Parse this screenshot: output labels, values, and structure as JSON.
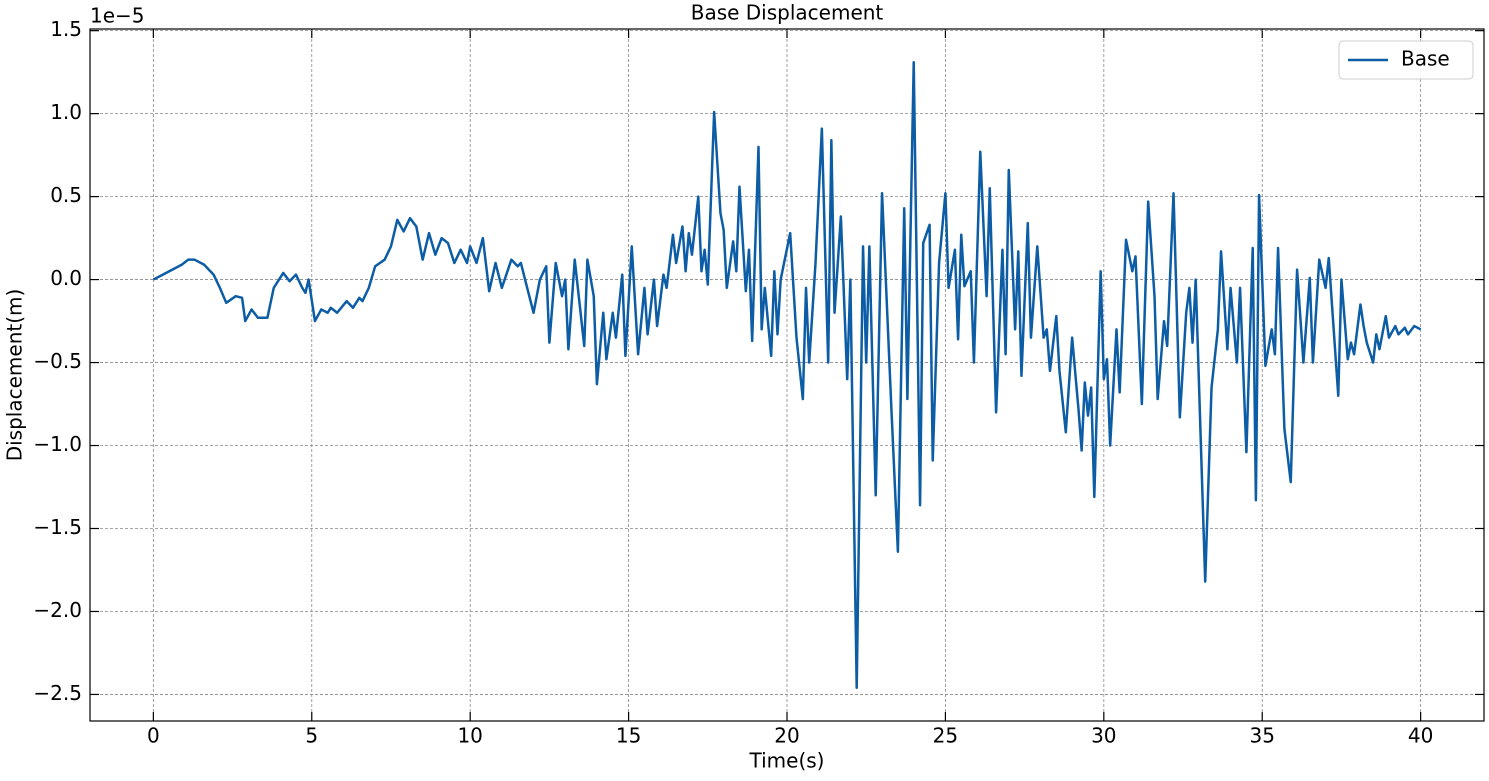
{
  "chart_data": {
    "type": "line",
    "title": "Base Displacement",
    "xlabel": "Time(s)",
    "ylabel": "Displacement(m)",
    "y_offset_label": "1e−5",
    "x": [
      0,
      0.3,
      0.6,
      0.9,
      1.1,
      1.3,
      1.6,
      1.9,
      2.1,
      2.3,
      2.6,
      2.8,
      2.9,
      3.1,
      3.3,
      3.6,
      3.8,
      4.1,
      4.3,
      4.5,
      4.7,
      4.8,
      4.9,
      5.1,
      5.3,
      5.5,
      5.6,
      5.8,
      6.1,
      6.3,
      6.5,
      6.6,
      6.8,
      7.0,
      7.3,
      7.5,
      7.7,
      7.9,
      8.1,
      8.3,
      8.5,
      8.7,
      8.9,
      9.1,
      9.3,
      9.5,
      9.7,
      9.9,
      10.0,
      10.2,
      10.4,
      10.6,
      10.8,
      11.0,
      11.3,
      11.5,
      11.6,
      11.8,
      12.0,
      12.2,
      12.4,
      12.5,
      12.7,
      12.9,
      13.0,
      13.1,
      13.3,
      13.6,
      13.7,
      13.9,
      14.0,
      14.2,
      14.3,
      14.5,
      14.6,
      14.8,
      14.9,
      15.1,
      15.3,
      15.5,
      15.6,
      15.8,
      15.9,
      16.1,
      16.2,
      16.4,
      16.5,
      16.7,
      16.8,
      16.9,
      17.0,
      17.2,
      17.3,
      17.4,
      17.5,
      17.7,
      17.9,
      18.0,
      18.1,
      18.3,
      18.4,
      18.5,
      18.7,
      18.8,
      18.9,
      19.1,
      19.2,
      19.3,
      19.5,
      19.6,
      19.7,
      19.8,
      20.1,
      20.3,
      20.5,
      20.6,
      20.7,
      20.9,
      21.1,
      21.3,
      21.4,
      21.5,
      21.7,
      21.9,
      22.0,
      22.2,
      22.4,
      22.5,
      22.6,
      22.8,
      23.0,
      23.3,
      23.5,
      23.7,
      23.8,
      24.0,
      24.2,
      24.3,
      24.5,
      24.6,
      24.8,
      25.0,
      25.1,
      25.3,
      25.4,
      25.5,
      25.6,
      25.8,
      25.9,
      26.1,
      26.3,
      26.4,
      26.6,
      26.8,
      26.9,
      27.0,
      27.2,
      27.3,
      27.4,
      27.6,
      27.7,
      27.9,
      28.1,
      28.2,
      28.3,
      28.5,
      28.6,
      28.8,
      29.0,
      29.2,
      29.3,
      29.4,
      29.5,
      29.6,
      29.7,
      29.9,
      30.0,
      30.1,
      30.2,
      30.4,
      30.5,
      30.7,
      30.9,
      31.0,
      31.2,
      31.4,
      31.6,
      31.7,
      31.9,
      32.0,
      32.2,
      32.4,
      32.6,
      32.7,
      32.8,
      32.9,
      33.2,
      33.4,
      33.6,
      33.7,
      33.9,
      34.0,
      34.2,
      34.3,
      34.5,
      34.7,
      34.8,
      34.9,
      35.1,
      35.3,
      35.4,
      35.5,
      35.7,
      35.9,
      36.1,
      36.3,
      36.5,
      36.6,
      36.8,
      37.0,
      37.1,
      37.4,
      37.5,
      37.7,
      37.8,
      37.9,
      38.1,
      38.2,
      38.3,
      38.5,
      38.6,
      38.7,
      38.9,
      39.0,
      39.2,
      39.3,
      39.5,
      39.6,
      39.8,
      40.0
    ],
    "series": [
      {
        "name": "Base",
        "color": "#0c5da5",
        "values": [
          0,
          0.03,
          0.06,
          0.09,
          0.12,
          0.12,
          0.09,
          0.03,
          -0.05,
          -0.14,
          -0.1,
          -0.11,
          -0.25,
          -0.18,
          -0.23,
          -0.23,
          -0.05,
          0.04,
          -0.01,
          0.03,
          -0.05,
          -0.08,
          0,
          -0.25,
          -0.18,
          -0.2,
          -0.17,
          -0.2,
          -0.13,
          -0.17,
          -0.11,
          -0.13,
          -0.05,
          0.08,
          0.12,
          0.2,
          0.36,
          0.29,
          0.37,
          0.32,
          0.12,
          0.28,
          0.15,
          0.25,
          0.22,
          0.1,
          0.18,
          0.1,
          0.2,
          0.1,
          0.25,
          -0.07,
          0.1,
          -0.05,
          0.12,
          0.08,
          0.1,
          -0.05,
          -0.2,
          0,
          0.08,
          -0.38,
          0.1,
          -0.1,
          0,
          -0.42,
          0.12,
          -0.4,
          0.12,
          -0.1,
          -0.63,
          -0.2,
          -0.48,
          -0.2,
          -0.35,
          0.03,
          -0.46,
          0.2,
          -0.45,
          -0.05,
          -0.33,
          0,
          -0.28,
          0.03,
          -0.05,
          0.27,
          0.1,
          0.32,
          0.05,
          0.28,
          0.15,
          0.5,
          0.05,
          0.18,
          -0.03,
          1.01,
          0.4,
          0.3,
          -0.05,
          0.23,
          0.05,
          0.56,
          -0.07,
          0.18,
          -0.37,
          0.8,
          -0.3,
          -0.05,
          -0.46,
          0.05,
          -0.33,
          0,
          0.28,
          -0.35,
          -0.72,
          -0.05,
          -0.5,
          0.1,
          0.91,
          -0.5,
          0.84,
          -0.2,
          0.38,
          -0.6,
          0,
          -2.46,
          0.2,
          -0.5,
          0.2,
          -1.3,
          0.52,
          -0.8,
          -1.64,
          0.43,
          -0.72,
          1.31,
          -1.36,
          0.22,
          0.33,
          -1.09,
          0.1,
          0.52,
          -0.05,
          0.18,
          -0.36,
          0.27,
          -0.04,
          0.05,
          -0.5,
          0.77,
          -0.1,
          0.55,
          -0.8,
          0.18,
          -0.45,
          0.66,
          -0.3,
          0.17,
          -0.58,
          0.34,
          -0.35,
          0.2,
          -0.35,
          -0.3,
          -0.55,
          -0.22,
          -0.55,
          -0.92,
          -0.35,
          -0.78,
          -1.03,
          -0.62,
          -0.82,
          -0.65,
          -1.31,
          0.05,
          -0.6,
          -0.48,
          -1,
          -0.3,
          -0.68,
          0.24,
          0.05,
          0.14,
          -0.75,
          0.47,
          -0.1,
          -0.72,
          -0.25,
          -0.4,
          0.52,
          -0.83,
          -0.2,
          -0.05,
          -0.38,
          0,
          -1.82,
          -0.65,
          -0.3,
          0.17,
          -0.42,
          -0.05,
          -0.5,
          -0.05,
          -1.04,
          0.19,
          -1.33,
          0.51,
          -0.52,
          -0.3,
          -0.45,
          0.19,
          -0.9,
          -1.22,
          0.06,
          -0.5,
          0.01,
          -0.5,
          0.12,
          -0.05,
          0.13,
          -0.7,
          0,
          -0.48,
          -0.38,
          -0.45,
          -0.15,
          -0.28,
          -0.38,
          -0.5,
          -0.33,
          -0.42,
          -0.22,
          -0.35,
          -0.28,
          -0.33,
          -0.29,
          -0.33,
          -0.28,
          -0.3
        ]
      }
    ],
    "xlim": [
      -2,
      42
    ],
    "ylim": [
      -2.66,
      1.51
    ],
    "xticks": [
      0,
      5,
      10,
      15,
      20,
      25,
      30,
      35,
      40
    ],
    "yticks": [
      {
        "value": -2.5,
        "label": "−2.5"
      },
      {
        "value": -2,
        "label": "−2.0"
      },
      {
        "value": -1.5,
        "label": "−1.5"
      },
      {
        "value": -1,
        "label": "−1.0"
      },
      {
        "value": -0.5,
        "label": "−0.5"
      },
      {
        "value": 0,
        "label": "0.0"
      },
      0.5,
      {
        "value": 1,
        "label": "1.0"
      },
      1.5
    ],
    "grid": true,
    "legend": "upper right"
  }
}
